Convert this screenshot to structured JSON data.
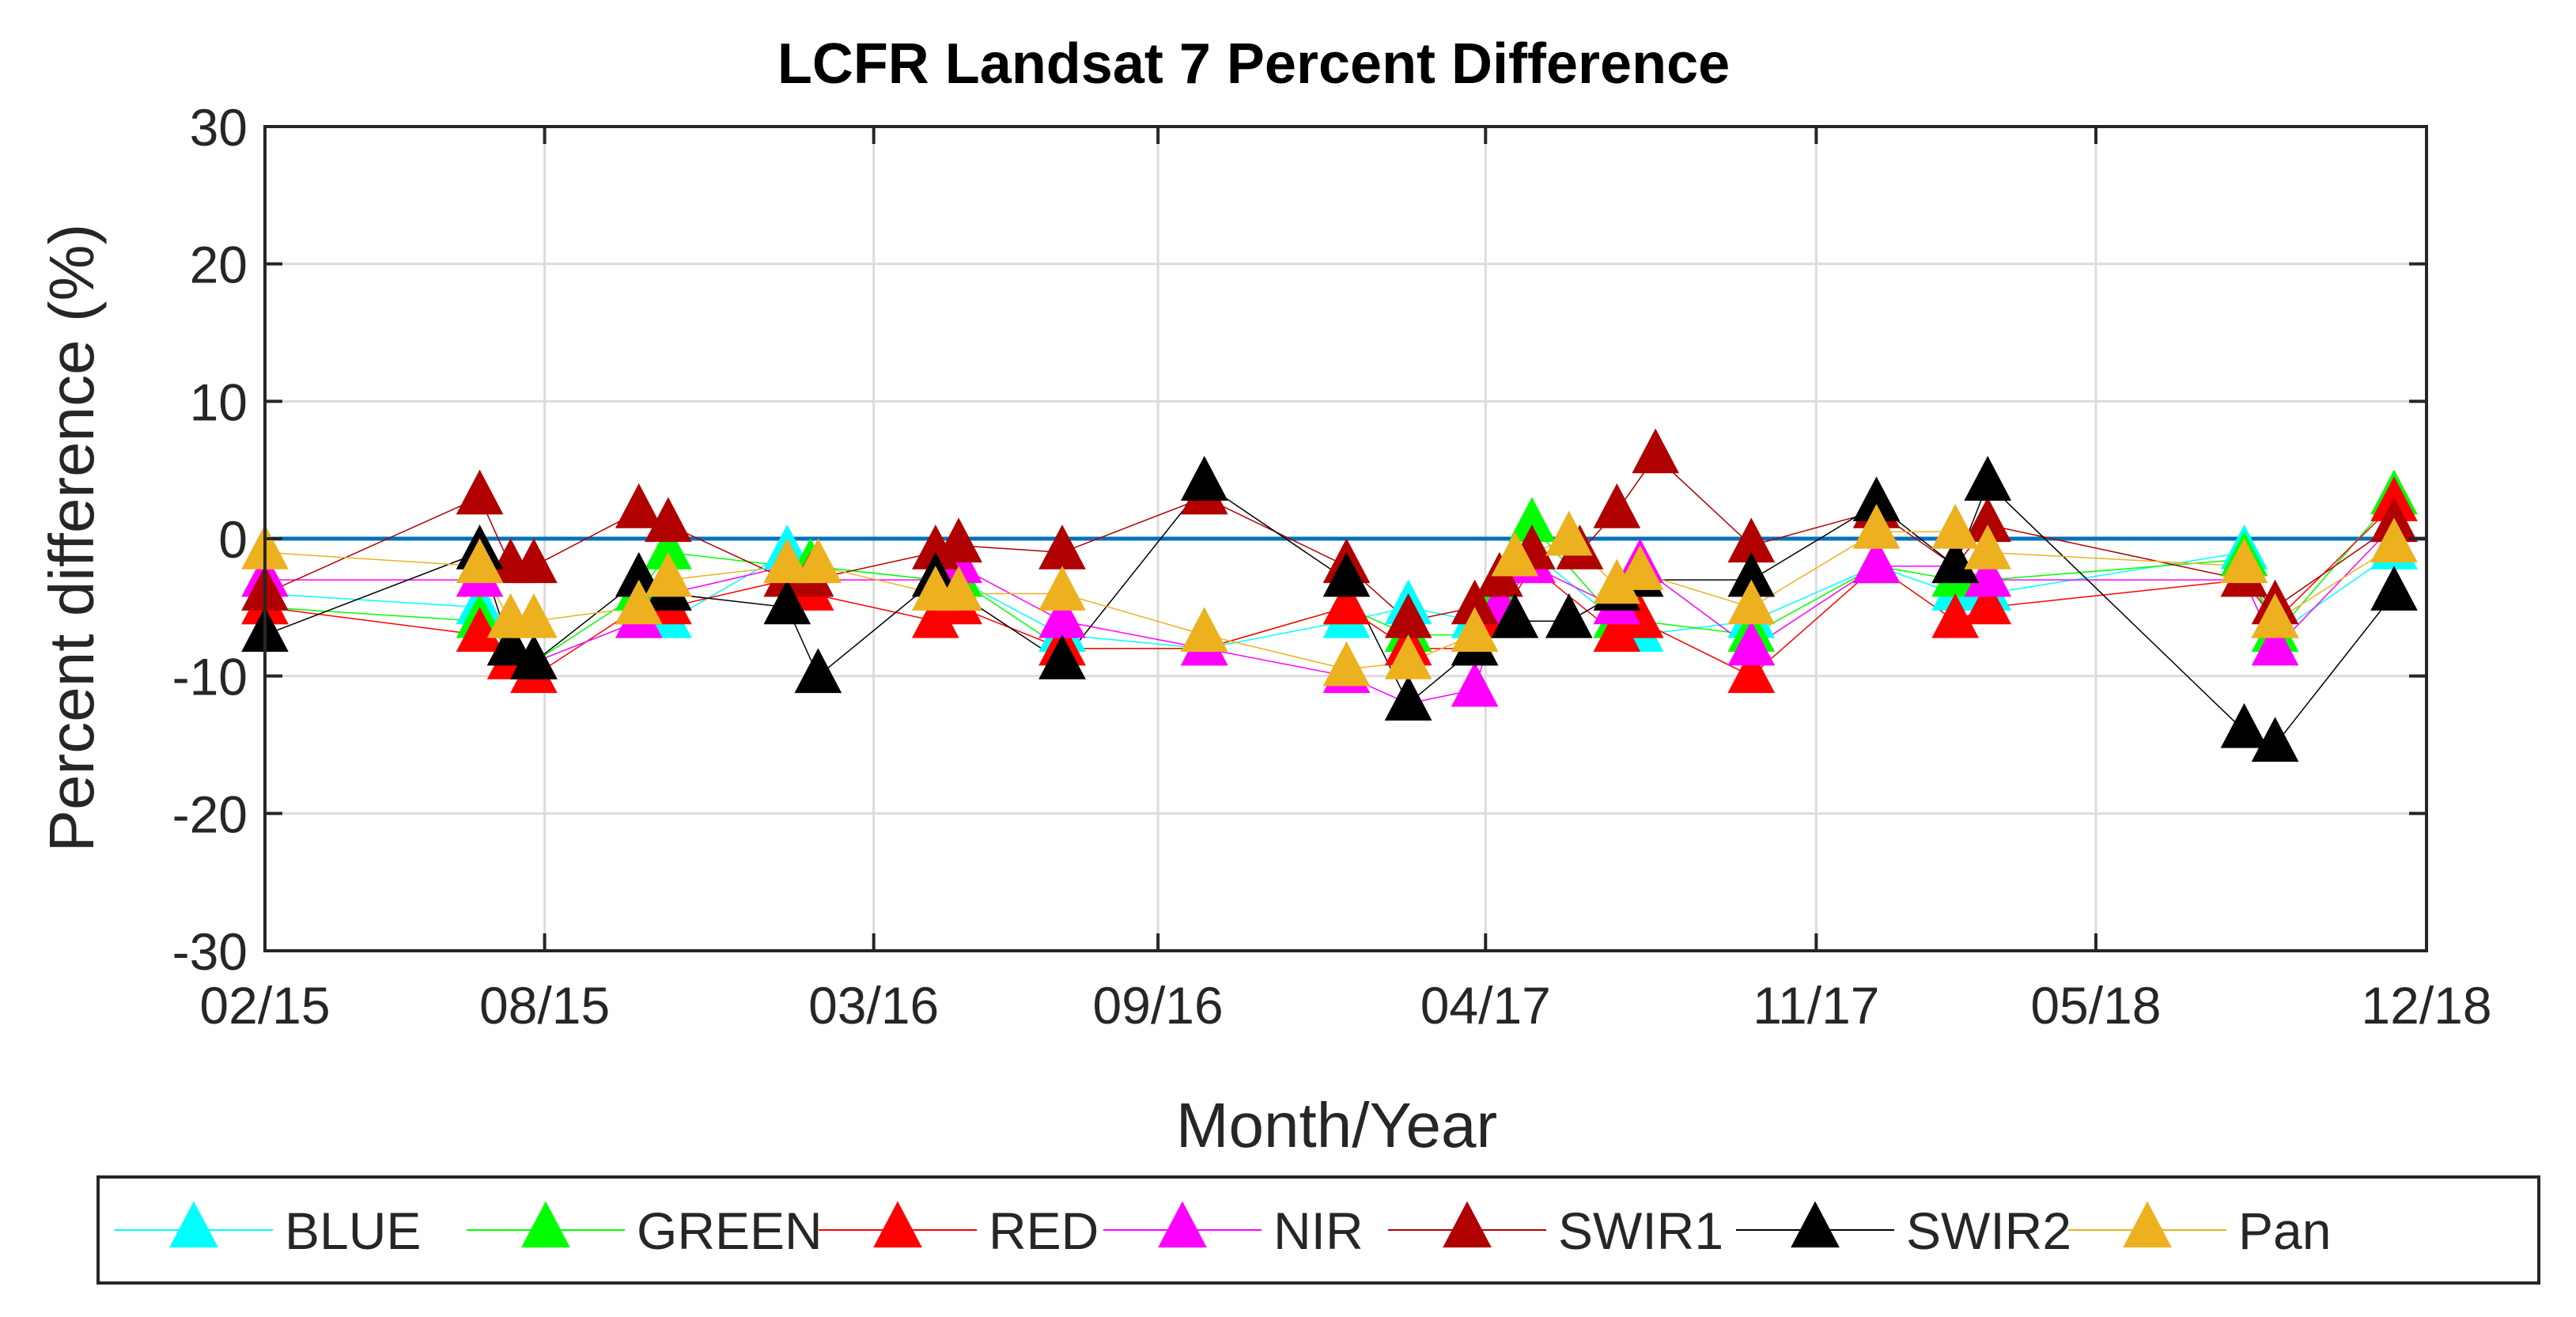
{
  "chart_data": {
    "type": "scatter",
    "title": "LCFR Landsat 7 Percent Difference",
    "xlabel": "Month/Year",
    "ylabel": "Percent difference (%)",
    "x_ticks": [
      "02/15",
      "08/15",
      "03/16",
      "09/16",
      "04/17",
      "11/17",
      "05/18",
      "12/18"
    ],
    "x_tick_dates": [
      "2015-02-01",
      "2015-08-01",
      "2016-03-01",
      "2016-09-01",
      "2017-04-01",
      "2017-11-01",
      "2018-05-01",
      "2018-12-01"
    ],
    "xlim": [
      "2015-02-01",
      "2018-12-01"
    ],
    "y_ticks": [
      "30",
      "20",
      "10",
      "0",
      "-10",
      "-20",
      "-30"
    ],
    "ylim": [
      -30,
      30
    ],
    "grid": true,
    "reference_line": {
      "y": 0,
      "color": "#0072BD"
    },
    "legend_position": "bottom-outside",
    "series": [
      {
        "name": "BLUE",
        "color": "#00FFFF",
        "points": [
          [
            "2015-02-01",
            -4
          ],
          [
            "2015-06-20",
            -5
          ],
          [
            "2015-07-10",
            -8
          ],
          [
            "2015-07-25",
            -9
          ],
          [
            "2015-10-01",
            -6
          ],
          [
            "2015-10-20",
            -6
          ],
          [
            "2016-01-05",
            -1
          ],
          [
            "2016-01-20",
            -2
          ],
          [
            "2016-04-10",
            -3
          ],
          [
            "2016-04-25",
            -3
          ],
          [
            "2016-07-01",
            -7
          ],
          [
            "2016-10-01",
            -8
          ],
          [
            "2017-01-01",
            -6
          ],
          [
            "2017-02-10",
            -5
          ],
          [
            "2017-03-25",
            -6
          ],
          [
            "2017-04-10",
            -3
          ],
          [
            "2017-05-01",
            -1
          ],
          [
            "2017-06-25",
            -6
          ],
          [
            "2017-07-10",
            -7
          ],
          [
            "2017-09-20",
            -6
          ],
          [
            "2017-12-10",
            -2
          ],
          [
            "2018-01-30",
            -4
          ],
          [
            "2018-02-20",
            -4
          ],
          [
            "2018-08-05",
            -1
          ],
          [
            "2018-08-25",
            -7
          ],
          [
            "2018-11-10",
            -1
          ]
        ]
      },
      {
        "name": "GREEN",
        "color": "#00FF00",
        "points": [
          [
            "2015-02-01",
            -5
          ],
          [
            "2015-06-20",
            -6
          ],
          [
            "2015-07-10",
            -8
          ],
          [
            "2015-07-25",
            -9
          ],
          [
            "2015-10-01",
            -4
          ],
          [
            "2015-10-20",
            -1
          ],
          [
            "2016-01-05",
            -2
          ],
          [
            "2016-01-20",
            -2
          ],
          [
            "2016-04-10",
            -3
          ],
          [
            "2016-04-25",
            -3
          ],
          [
            "2016-07-01",
            -8
          ],
          [
            "2016-10-01",
            -8
          ],
          [
            "2017-01-01",
            -5
          ],
          [
            "2017-02-10",
            -7
          ],
          [
            "2017-03-25",
            -7
          ],
          [
            "2017-04-10",
            -4
          ],
          [
            "2017-05-01",
            1
          ],
          [
            "2017-06-25",
            -6
          ],
          [
            "2017-07-10",
            -6
          ],
          [
            "2017-09-20",
            -7
          ],
          [
            "2017-12-10",
            -2
          ],
          [
            "2018-01-30",
            -3
          ],
          [
            "2018-02-20",
            -3
          ],
          [
            "2018-08-05",
            -1.5
          ],
          [
            "2018-08-25",
            -7
          ],
          [
            "2018-11-10",
            3
          ]
        ]
      },
      {
        "name": "RED",
        "color": "#FF0000",
        "points": [
          [
            "2015-02-01",
            -5
          ],
          [
            "2015-06-20",
            -7
          ],
          [
            "2015-07-10",
            -9
          ],
          [
            "2015-07-25",
            -10
          ],
          [
            "2015-10-01",
            -5
          ],
          [
            "2015-10-20",
            -5
          ],
          [
            "2016-01-05",
            -3
          ],
          [
            "2016-01-20",
            -4
          ],
          [
            "2016-04-10",
            -6
          ],
          [
            "2016-04-25",
            -5
          ],
          [
            "2016-07-01",
            -8
          ],
          [
            "2016-10-01",
            -8
          ],
          [
            "2017-01-01",
            -5
          ],
          [
            "2017-02-10",
            -8
          ],
          [
            "2017-03-25",
            -8
          ],
          [
            "2017-04-10",
            -6
          ],
          [
            "2017-05-01",
            -2
          ],
          [
            "2017-06-25",
            -7
          ],
          [
            "2017-07-10",
            -6
          ],
          [
            "2017-09-20",
            -10
          ],
          [
            "2017-12-10",
            -2
          ],
          [
            "2018-01-30",
            -6
          ],
          [
            "2018-02-20",
            -5
          ],
          [
            "2018-08-05",
            -3
          ],
          [
            "2018-08-25",
            -6
          ],
          [
            "2018-11-10",
            2.5
          ]
        ]
      },
      {
        "name": "NIR",
        "color": "#FF00FF",
        "points": [
          [
            "2015-02-01",
            -3
          ],
          [
            "2015-06-20",
            -3
          ],
          [
            "2015-07-10",
            -8
          ],
          [
            "2015-07-25",
            -9
          ],
          [
            "2015-10-01",
            -6
          ],
          [
            "2015-10-20",
            -4
          ],
          [
            "2016-01-05",
            -2
          ],
          [
            "2016-01-20",
            -3
          ],
          [
            "2016-04-10",
            -3
          ],
          [
            "2016-04-25",
            -2
          ],
          [
            "2016-07-01",
            -6
          ],
          [
            "2016-10-01",
            -8
          ],
          [
            "2017-01-01",
            -10
          ],
          [
            "2017-02-10",
            -12
          ],
          [
            "2017-03-25",
            -11
          ],
          [
            "2017-04-10",
            -5
          ],
          [
            "2017-05-01",
            -2
          ],
          [
            "2017-06-25",
            -5
          ],
          [
            "2017-07-10",
            -2
          ],
          [
            "2017-09-20",
            -8
          ],
          [
            "2017-12-10",
            -2
          ],
          [
            "2018-01-30",
            -2
          ],
          [
            "2018-02-20",
            -3
          ],
          [
            "2018-08-05",
            -3
          ],
          [
            "2018-08-25",
            -8
          ],
          [
            "2018-11-10",
            1
          ]
        ]
      },
      {
        "name": "SWIR1",
        "color": "#B00000",
        "points": [
          [
            "2015-02-01",
            -4
          ],
          [
            "2015-06-20",
            3
          ],
          [
            "2015-07-10",
            -2
          ],
          [
            "2015-07-25",
            -2
          ],
          [
            "2015-10-01",
            2
          ],
          [
            "2015-10-20",
            1
          ],
          [
            "2016-01-05",
            -3
          ],
          [
            "2016-01-20",
            -3
          ],
          [
            "2016-04-10",
            -1
          ],
          [
            "2016-04-25",
            -0.5
          ],
          [
            "2016-07-01",
            -1
          ],
          [
            "2016-10-01",
            3
          ],
          [
            "2017-01-01",
            -2
          ],
          [
            "2017-02-10",
            -6
          ],
          [
            "2017-03-25",
            -5
          ],
          [
            "2017-04-10",
            -3
          ],
          [
            "2017-05-01",
            -1
          ],
          [
            "2017-06-01",
            -1
          ],
          [
            "2017-06-25",
            2
          ],
          [
            "2017-07-20",
            6
          ],
          [
            "2017-09-20",
            -0.5
          ],
          [
            "2017-12-10",
            2
          ],
          [
            "2018-01-30",
            -2
          ],
          [
            "2018-02-20",
            1
          ],
          [
            "2018-08-05",
            -3
          ],
          [
            "2018-08-25",
            -5
          ],
          [
            "2018-11-10",
            1
          ]
        ]
      },
      {
        "name": "SWIR2",
        "color": "#000000",
        "points": [
          [
            "2015-02-01",
            -7
          ],
          [
            "2015-06-20",
            -1
          ],
          [
            "2015-07-10",
            -8
          ],
          [
            "2015-07-25",
            -9
          ],
          [
            "2015-10-01",
            -3
          ],
          [
            "2015-10-20",
            -4
          ],
          [
            "2016-01-05",
            -5
          ],
          [
            "2016-01-25",
            -10
          ],
          [
            "2016-04-10",
            -3
          ],
          [
            "2016-04-25",
            -4
          ],
          [
            "2016-07-01",
            -9
          ],
          [
            "2016-10-01",
            4
          ],
          [
            "2017-01-01",
            -3
          ],
          [
            "2017-02-10",
            -12
          ],
          [
            "2017-03-25",
            -8
          ],
          [
            "2017-04-20",
            -6
          ],
          [
            "2017-05-25",
            -6
          ],
          [
            "2017-06-25",
            -4
          ],
          [
            "2017-07-10",
            -3
          ],
          [
            "2017-09-20",
            -3
          ],
          [
            "2017-12-10",
            2.5
          ],
          [
            "2018-01-30",
            -2
          ],
          [
            "2018-02-20",
            4
          ],
          [
            "2018-08-05",
            -14
          ],
          [
            "2018-08-25",
            -15
          ],
          [
            "2018-11-10",
            -4
          ]
        ]
      },
      {
        "name": "Pan",
        "color": "#EDB120",
        "points": [
          [
            "2015-02-01",
            -1
          ],
          [
            "2015-06-20",
            -2
          ],
          [
            "2015-07-10",
            -6
          ],
          [
            "2015-07-25",
            -6
          ],
          [
            "2015-10-01",
            -5
          ],
          [
            "2015-10-20",
            -3
          ],
          [
            "2016-01-05",
            -2
          ],
          [
            "2016-01-25",
            -2
          ],
          [
            "2016-04-10",
            -4
          ],
          [
            "2016-04-25",
            -4
          ],
          [
            "2016-07-01",
            -4
          ],
          [
            "2016-10-01",
            -7
          ],
          [
            "2017-01-01",
            -9.5
          ],
          [
            "2017-02-10",
            -9
          ],
          [
            "2017-03-25",
            -7
          ],
          [
            "2017-04-20",
            -1.5
          ],
          [
            "2017-05-25",
            0
          ],
          [
            "2017-06-25",
            -3.5
          ],
          [
            "2017-07-10",
            -2.5
          ],
          [
            "2017-09-20",
            -5
          ],
          [
            "2017-12-10",
            0.5
          ],
          [
            "2018-01-30",
            0.5
          ],
          [
            "2018-02-20",
            -1
          ],
          [
            "2018-08-05",
            -2
          ],
          [
            "2018-08-25",
            -6
          ],
          [
            "2018-11-10",
            -0.5
          ]
        ]
      }
    ]
  }
}
